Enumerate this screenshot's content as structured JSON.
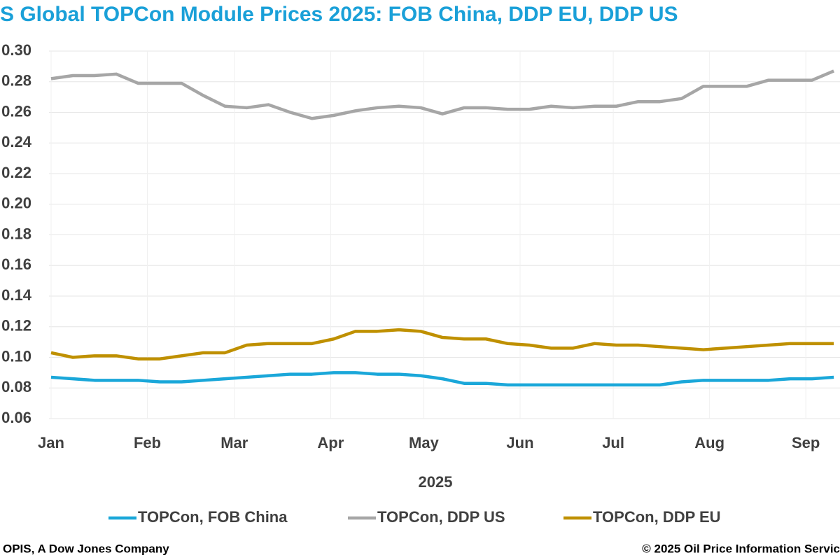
{
  "chart_data": {
    "type": "line",
    "title": "S Global TOPCon Module Prices 2025: FOB China, DDP EU, DDP US",
    "xlabel": "2025",
    "x": [
      0,
      7,
      14,
      21,
      28,
      35,
      42,
      49,
      56,
      63,
      70,
      77,
      84,
      91,
      98,
      105,
      112,
      119,
      126,
      133,
      140,
      147,
      154,
      161,
      168,
      175,
      182,
      189,
      196,
      203,
      210,
      217,
      224,
      231,
      238,
      245,
      252
    ],
    "xlim": [
      0,
      254
    ],
    "xticks": [
      {
        "value": 0,
        "label": "Jan"
      },
      {
        "value": 31,
        "label": "Feb"
      },
      {
        "value": 59,
        "label": "Mar"
      },
      {
        "value": 90,
        "label": "Apr"
      },
      {
        "value": 120,
        "label": "May"
      },
      {
        "value": 151,
        "label": "Jun"
      },
      {
        "value": 181,
        "label": "Jul"
      },
      {
        "value": 212,
        "label": "Aug"
      },
      {
        "value": 243,
        "label": "Sep"
      }
    ],
    "ylim": [
      0.06,
      0.3
    ],
    "yticks": [
      {
        "value": 0.06,
        "label": "0.06"
      },
      {
        "value": 0.08,
        "label": "0.08"
      },
      {
        "value": 0.1,
        "label": "0.10"
      },
      {
        "value": 0.12,
        "label": "0.12"
      },
      {
        "value": 0.14,
        "label": "0.14"
      },
      {
        "value": 0.16,
        "label": "0.16"
      },
      {
        "value": 0.18,
        "label": "0.18"
      },
      {
        "value": 0.2,
        "label": "0.20"
      },
      {
        "value": 0.22,
        "label": "0.22"
      },
      {
        "value": 0.24,
        "label": "0.24"
      },
      {
        "value": 0.26,
        "label": "0.26"
      },
      {
        "value": 0.28,
        "label": "0.28"
      },
      {
        "value": 0.3,
        "label": "0.30"
      }
    ],
    "grid": true,
    "legend": "bottom",
    "series": [
      {
        "name": "TOPCon, FOB China",
        "color": "#1aa7d9",
        "values": [
          0.087,
          0.086,
          0.085,
          0.085,
          0.085,
          0.084,
          0.084,
          0.085,
          0.086,
          0.087,
          0.088,
          0.089,
          0.089,
          0.09,
          0.09,
          0.089,
          0.089,
          0.088,
          0.086,
          0.083,
          0.083,
          0.082,
          0.082,
          0.082,
          0.082,
          0.082,
          0.082,
          0.082,
          0.082,
          0.084,
          0.085,
          0.085,
          0.085,
          0.085,
          0.086,
          0.086,
          0.087
        ]
      },
      {
        "name": "TOPCon, DDP US",
        "color": "#a6a6a6",
        "values": [
          0.282,
          0.284,
          0.284,
          0.285,
          0.279,
          0.279,
          0.279,
          0.271,
          0.264,
          0.263,
          0.265,
          0.26,
          0.256,
          0.258,
          0.261,
          0.263,
          0.264,
          0.263,
          0.259,
          0.263,
          0.263,
          0.262,
          0.262,
          0.264,
          0.263,
          0.264,
          0.264,
          0.267,
          0.267,
          0.269,
          0.277,
          0.277,
          0.277,
          0.281,
          0.281,
          0.281,
          0.287
        ]
      },
      {
        "name": "TOPCon, DDP EU",
        "color": "#bf9000",
        "values": [
          0.103,
          0.1,
          0.101,
          0.101,
          0.099,
          0.099,
          0.101,
          0.103,
          0.103,
          0.108,
          0.109,
          0.109,
          0.109,
          0.112,
          0.117,
          0.117,
          0.118,
          0.117,
          0.113,
          0.112,
          0.112,
          0.109,
          0.108,
          0.106,
          0.106,
          0.109,
          0.108,
          0.108,
          0.107,
          0.106,
          0.105,
          0.106,
          0.107,
          0.108,
          0.109,
          0.109,
          0.109
        ]
      }
    ],
    "source": "OPIS, A Dow Jones Company",
    "copyright": "© 2025 Oil Price Information Servic"
  }
}
